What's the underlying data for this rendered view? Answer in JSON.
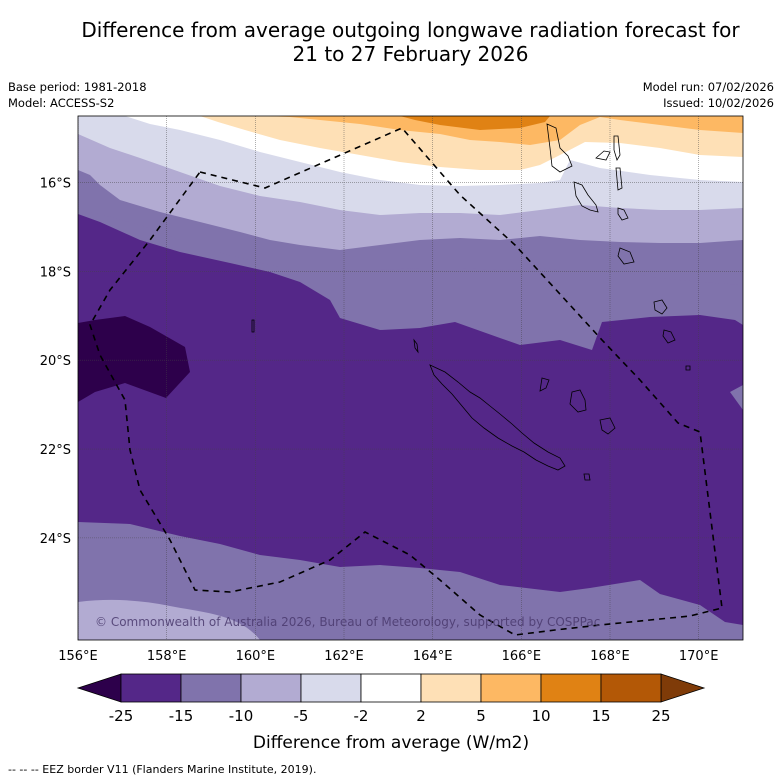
{
  "header": {
    "title_line1": "Difference from average outgoing longwave radiation forecast for",
    "title_line2": "21 to 27 February 2026",
    "base_period": "Base period: 1981-2018",
    "model": "Model: ACCESS-S2",
    "model_run": "Model run: 07/02/2026",
    "issued": "Issued: 10/02/2026"
  },
  "map": {
    "extent": {
      "lon_min": 156,
      "lon_max": 171,
      "lat_min": -26.3,
      "lat_max": -14.5
    },
    "lon_ticks": [
      "156°E",
      "158°E",
      "160°E",
      "162°E",
      "164°E",
      "166°E",
      "168°E",
      "170°E"
    ],
    "lon_values": [
      156,
      158,
      160,
      162,
      164,
      166,
      168,
      170
    ],
    "lat_ticks": [
      "16°S",
      "18°S",
      "20°S",
      "22°S",
      "24°S"
    ],
    "lat_values": [
      -16,
      -18,
      -20,
      -22,
      -24
    ],
    "copyright": "© Commonwealth of Australia 2026, Bureau of Meteorology, supported by COSPPac",
    "eez_line_style": "dashed",
    "gridlines": true
  },
  "colorbar": {
    "title": "Difference from average (W/m2)",
    "tick_labels": [
      "-25",
      "-15",
      "-10",
      "-5",
      "-2",
      "2",
      "5",
      "10",
      "15",
      "25"
    ],
    "under_color": "#2d004b",
    "over_color": "#7f3b08",
    "bins": [
      {
        "range": "-25 to -15",
        "color": "#542788"
      },
      {
        "range": "-15 to -10",
        "color": "#8073ac"
      },
      {
        "range": "-10 to -5",
        "color": "#b2abd2"
      },
      {
        "range": "-5 to -2",
        "color": "#d8daeb"
      },
      {
        "range": "-2 to 2",
        "color": "#ffffff"
      },
      {
        "range": "2 to 5",
        "color": "#fee0b6"
      },
      {
        "range": "5 to 10",
        "color": "#fdb863"
      },
      {
        "range": "10 to 15",
        "color": "#e08214"
      },
      {
        "range": "15 to 25",
        "color": "#b35806"
      }
    ]
  },
  "footnote": "--  --  -- EEZ border V11 (Flanders Marine Institute, 2019)."
}
